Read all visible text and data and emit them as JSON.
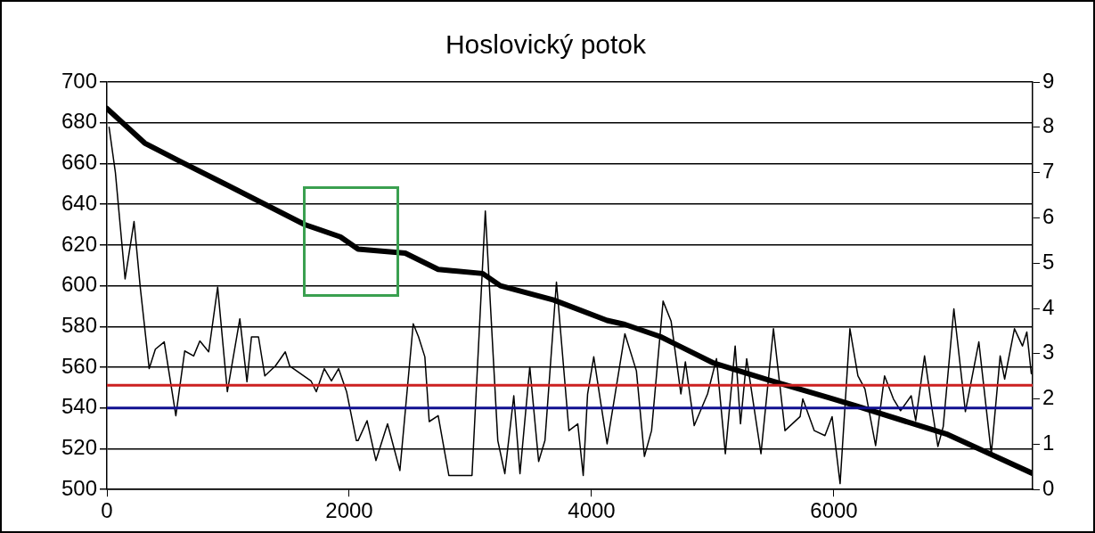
{
  "chart_data": {
    "type": "line",
    "title": "Hoslovický potok",
    "xlim": [
      0,
      7640
    ],
    "xticks": [
      0,
      2000,
      4000,
      6000
    ],
    "ylim": [
      500,
      700
    ],
    "yticks": [
      500,
      520,
      540,
      560,
      580,
      600,
      620,
      640,
      660,
      680,
      700
    ],
    "y2lim": [
      0,
      9
    ],
    "y2ticks": [
      0,
      1,
      2,
      3,
      4,
      5,
      6,
      7,
      8,
      9
    ],
    "grid": "y",
    "legend": false,
    "marker": "none",
    "line_style": "solid",
    "series": [
      {
        "color": "#000000",
        "x": [
          0,
          312,
          605,
          972,
          1633,
          1927,
          2073,
          2462,
          2734,
          3101,
          3248,
          3688,
          4128,
          4275,
          4569,
          5009,
          5449,
          5963,
          6183,
          6939,
          7636
        ],
        "values": [
          687,
          670,
          661,
          650,
          630,
          624,
          618,
          616,
          608,
          606,
          600,
          593,
          583,
          581,
          575,
          562,
          554,
          545,
          541,
          527,
          508
        ]
      },
      {
        "color": "#000000",
        "axis": "y2",
        "x": [
          18,
          70,
          150,
          224,
          275,
          349,
          400,
          473,
          569,
          642,
          716,
          767,
          840,
          914,
          994,
          1097,
          1156,
          1193,
          1251,
          1303,
          1391,
          1472,
          1508,
          1684,
          1728,
          1794,
          1853,
          1912,
          1978,
          2059,
          2073,
          2147,
          2220,
          2316,
          2418,
          2528,
          2572,
          2624,
          2660,
          2734,
          2822,
          3013,
          3123,
          3226,
          3284,
          3358,
          3409,
          3490,
          3563,
          3615,
          3710,
          3813,
          3886,
          3931,
          3967,
          4018,
          4077,
          4128,
          4275,
          4370,
          4436,
          4495,
          4590,
          4656,
          4737,
          4774,
          4847,
          4957,
          5031,
          5104,
          5185,
          5229,
          5280,
          5398,
          5501,
          5596,
          5721,
          5743,
          5838,
          5926,
          5985,
          6051,
          6132,
          6198,
          6256,
          6344,
          6418,
          6491,
          6550,
          6638,
          6675,
          6748,
          6807,
          6858,
          6902,
          6990,
          7085,
          7196,
          7299,
          7372,
          7409,
          7490,
          7556,
          7592,
          7629
        ],
        "values": [
          8.0,
          7.0,
          4.65,
          5.92,
          4.47,
          2.67,
          3.1,
          3.26,
          1.63,
          3.06,
          2.95,
          3.28,
          3.04,
          4.47,
          2.16,
          3.77,
          2.38,
          3.37,
          3.37,
          2.51,
          2.73,
          3.04,
          2.73,
          2.4,
          2.16,
          2.67,
          2.4,
          2.67,
          2.16,
          1.08,
          1.08,
          1.52,
          0.64,
          1.45,
          0.42,
          3.66,
          3.37,
          2.93,
          1.5,
          1.63,
          0.31,
          0.31,
          6.15,
          1.08,
          0.35,
          2.07,
          0.35,
          2.71,
          0.62,
          1.08,
          4.58,
          1.3,
          1.45,
          0.31,
          2.11,
          2.93,
          1.89,
          1.01,
          3.44,
          2.62,
          0.73,
          1.3,
          4.16,
          3.72,
          2.11,
          2.82,
          1.41,
          2.11,
          2.89,
          0.79,
          3.17,
          1.45,
          2.89,
          0.79,
          3.55,
          1.3,
          1.61,
          2.0,
          1.3,
          1.19,
          1.61,
          0.13,
          3.55,
          2.51,
          2.22,
          0.97,
          2.51,
          2.0,
          1.74,
          2.07,
          1.52,
          2.95,
          1.83,
          0.95,
          1.39,
          3.99,
          1.72,
          3.26,
          0.79,
          2.95,
          2.44,
          3.55,
          3.17,
          3.48,
          2.56
        ]
      }
    ],
    "ref_lines": [
      {
        "axis": "y2",
        "value": 2.3,
        "color": "#cc2020"
      },
      {
        "axis": "y2",
        "value": 1.8,
        "color": "#101090"
      }
    ]
  }
}
